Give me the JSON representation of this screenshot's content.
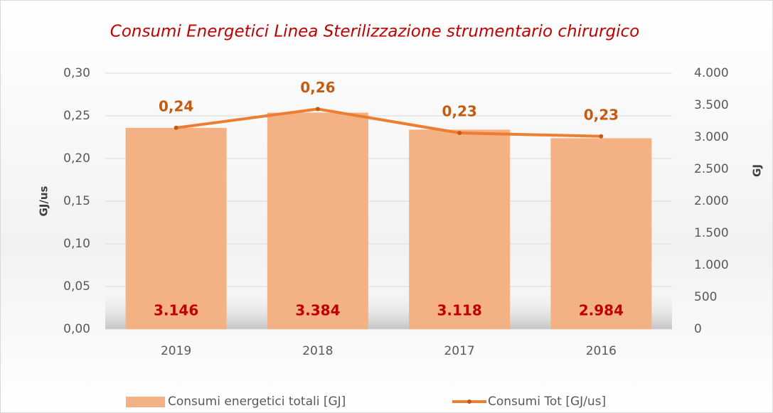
{
  "chart_data": {
    "type": "bar-line",
    "title": "Consumi Energetici Linea Sterilizzazione strumentario chirurgico",
    "y_label": "GJ/us",
    "y2_label": "GJ",
    "categories": [
      "2019",
      "2018",
      "2017",
      "2016"
    ],
    "series": [
      {
        "name": "Consumi energetici totali [GJ]",
        "type": "bar",
        "axis": "y2",
        "color": "#f4b183",
        "values": [
          3146,
          3384,
          3118,
          2984
        ],
        "value_labels": [
          "3.146",
          "3.384",
          "3.118",
          "2.984"
        ]
      },
      {
        "name": "Consumi Tot [GJ/us]",
        "type": "line",
        "color": "#ed7d31",
        "values": [
          0.236,
          0.258,
          0.23,
          0.226
        ],
        "value_labels": [
          "0,24",
          "0,26",
          "0,23",
          "0,23"
        ]
      }
    ],
    "ylim": [
      0,
      0.3
    ],
    "yticks": [
      {
        "value": 0,
        "label": "0,00"
      },
      {
        "value": 0.05,
        "label": "0,05"
      },
      {
        "value": 0.1,
        "label": "0,10"
      },
      {
        "value": 0.15,
        "label": "0,15"
      },
      {
        "value": 0.2,
        "label": "0,20"
      },
      {
        "value": 0.25,
        "label": "0,25"
      },
      {
        "value": 0.3,
        "label": "0,30"
      }
    ],
    "y2lim": [
      0,
      4000
    ],
    "y2ticks": [
      0,
      500,
      {
        "value": 1000,
        "label": "1.000"
      },
      {
        "value": 1500,
        "label": "1.500"
      },
      {
        "value": 2000,
        "label": "2.000"
      },
      {
        "value": 2500,
        "label": "2.500"
      },
      {
        "value": 3000,
        "label": "3.000"
      },
      {
        "value": 3500,
        "label": "3.500"
      },
      {
        "value": 4000,
        "label": "4.000"
      }
    ],
    "grid": true
  }
}
